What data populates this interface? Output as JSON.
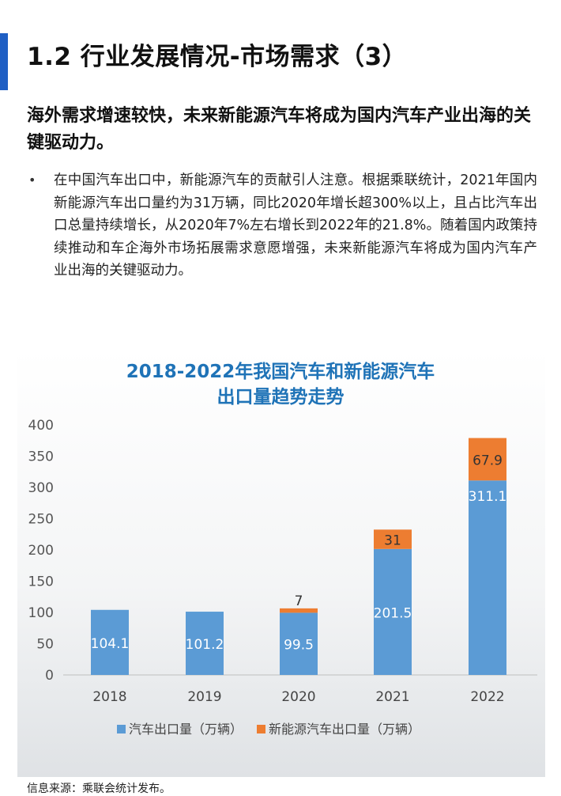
{
  "header": {
    "title": "1.2 行业发展情况-市场需求（3）"
  },
  "subtitle": "海外需求增速较快，未来新能源汽车将成为国内汽车产业出海的关键驱动力。",
  "bullet": {
    "marker": "•",
    "text": "在中国汽车出口中，新能源汽车的贡献引人注意。根据乘联统计，2021年国内新能源汽车出口量约为31万辆，同比2020年增长超300%以上，且占比汽车出口总量持续增长，从2020年7%左右增长到2022年的21.8%。随着国内政策持续推动和车企海外市场拓展需求意愿增强，未来新能源汽车将成为国内汽车产业出海的关键驱动力。"
  },
  "chart_title_line1": "2018-2022年我国汽车和新能源汽车",
  "chart_title_line2": "出口量趋势走势",
  "chart_data": {
    "type": "bar",
    "stacked": true,
    "title": "2018-2022年我国汽车和新能源汽车出口量趋势走势",
    "categories": [
      "2018",
      "2019",
      "2020",
      "2021",
      "2022"
    ],
    "series": [
      {
        "name": "汽车出口量（万辆）",
        "values": [
          104.1,
          101.2,
          99.5,
          201.5,
          311.1
        ],
        "labels": [
          "104.1",
          "101.2",
          "99.5",
          "201.5",
          "311.1"
        ],
        "color": "#5b9bd5"
      },
      {
        "name": "新能源汽车出口量（万辆）",
        "values": [
          0,
          0,
          7,
          31,
          67.9
        ],
        "labels": [
          "",
          "",
          "7",
          "31",
          "67.9"
        ],
        "color": "#ed7d31"
      }
    ],
    "yticks": [
      "0",
      "50",
      "100",
      "150",
      "200",
      "250",
      "300",
      "350",
      "400"
    ],
    "ylim": [
      0,
      400
    ],
    "grid": false,
    "legend": "bottom"
  },
  "source": "信息来源：乘联会统计发布。"
}
